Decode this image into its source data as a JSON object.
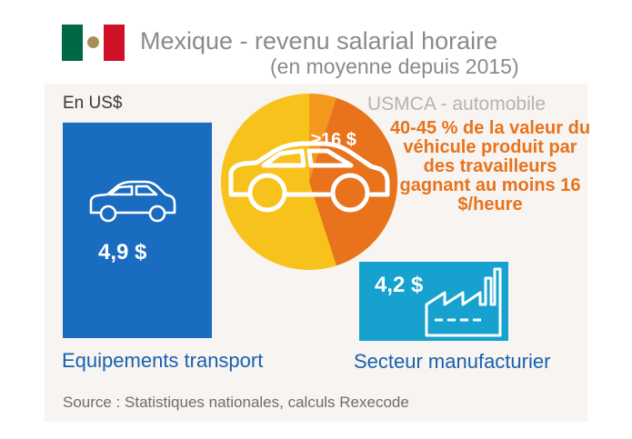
{
  "header": {
    "title": "Mexique - revenu salarial horaire",
    "subtitle": "(en moyenne depuis 2015)",
    "flag_colors": [
      "#006847",
      "#ffffff",
      "#ce1126"
    ]
  },
  "unit_label": "En US$",
  "chart_data": {
    "type": "bar",
    "categories": [
      "Equipements transport",
      "Secteur manufacturier"
    ],
    "values": [
      4.9,
      4.2
    ],
    "value_labels": [
      "4,9 $",
      "4,2 $"
    ],
    "colors": [
      "#1a6cc0",
      "#16a1cf"
    ],
    "icons": [
      "car-icon",
      "factory-icon"
    ]
  },
  "usmca": {
    "title": "USMCA - automobile",
    "text": "40-45 % de la valeur du véhicule produit par  des travailleurs gagnant au moins 16 $/heure",
    "pie": {
      "label": "≥16 $",
      "share_range": [
        0.4,
        0.45
      ],
      "colors": {
        "base": "#f8c21c",
        "share": "#e8731c",
        "band": "#f39a1e"
      }
    }
  },
  "source": "Source : Statistiques nationales, calculs Rexecode"
}
